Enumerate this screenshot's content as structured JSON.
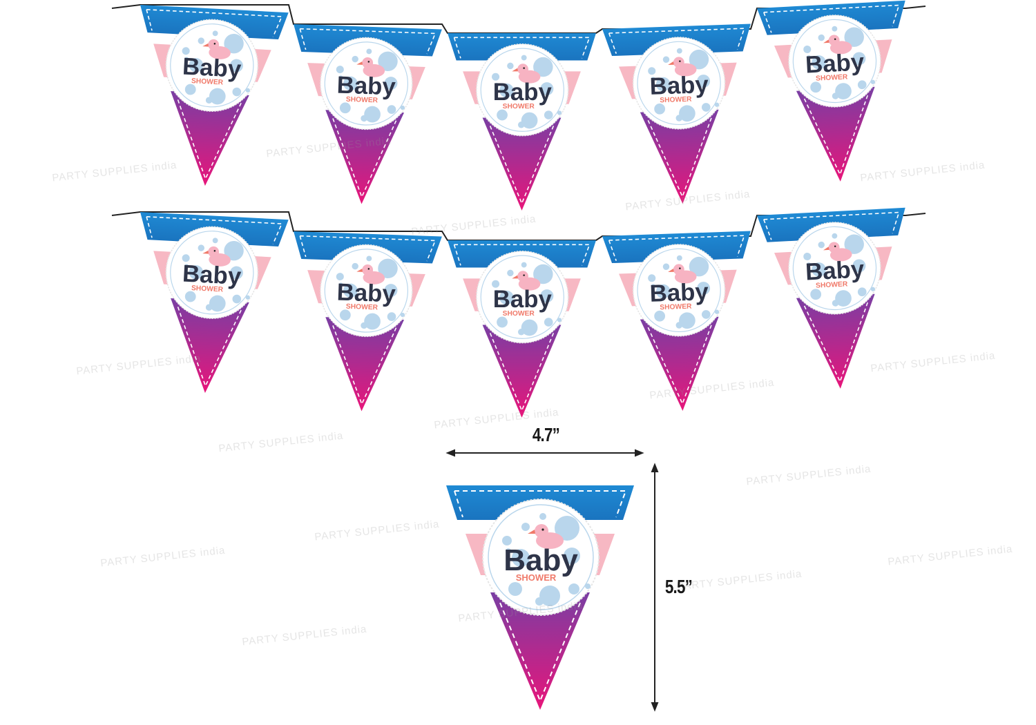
{
  "pennant": {
    "title": "Baby",
    "subtitle": "SHOWER",
    "icon": "rubber-duck-icon",
    "colors": {
      "blue": "#1b7fc8",
      "pink": "#f7b8c3",
      "purple": "#7b3fa0",
      "magenta": "#e5177a",
      "text": "#2e3448",
      "subtitle": "#f07a6a",
      "bubble": "#b9d6ec"
    }
  },
  "rows": [
    {
      "count": 5
    },
    {
      "count": 5
    }
  ],
  "dimensions": {
    "width_label": "4.7”",
    "height_label": "5.5”"
  },
  "watermark": "PARTY SUPPLIES india"
}
